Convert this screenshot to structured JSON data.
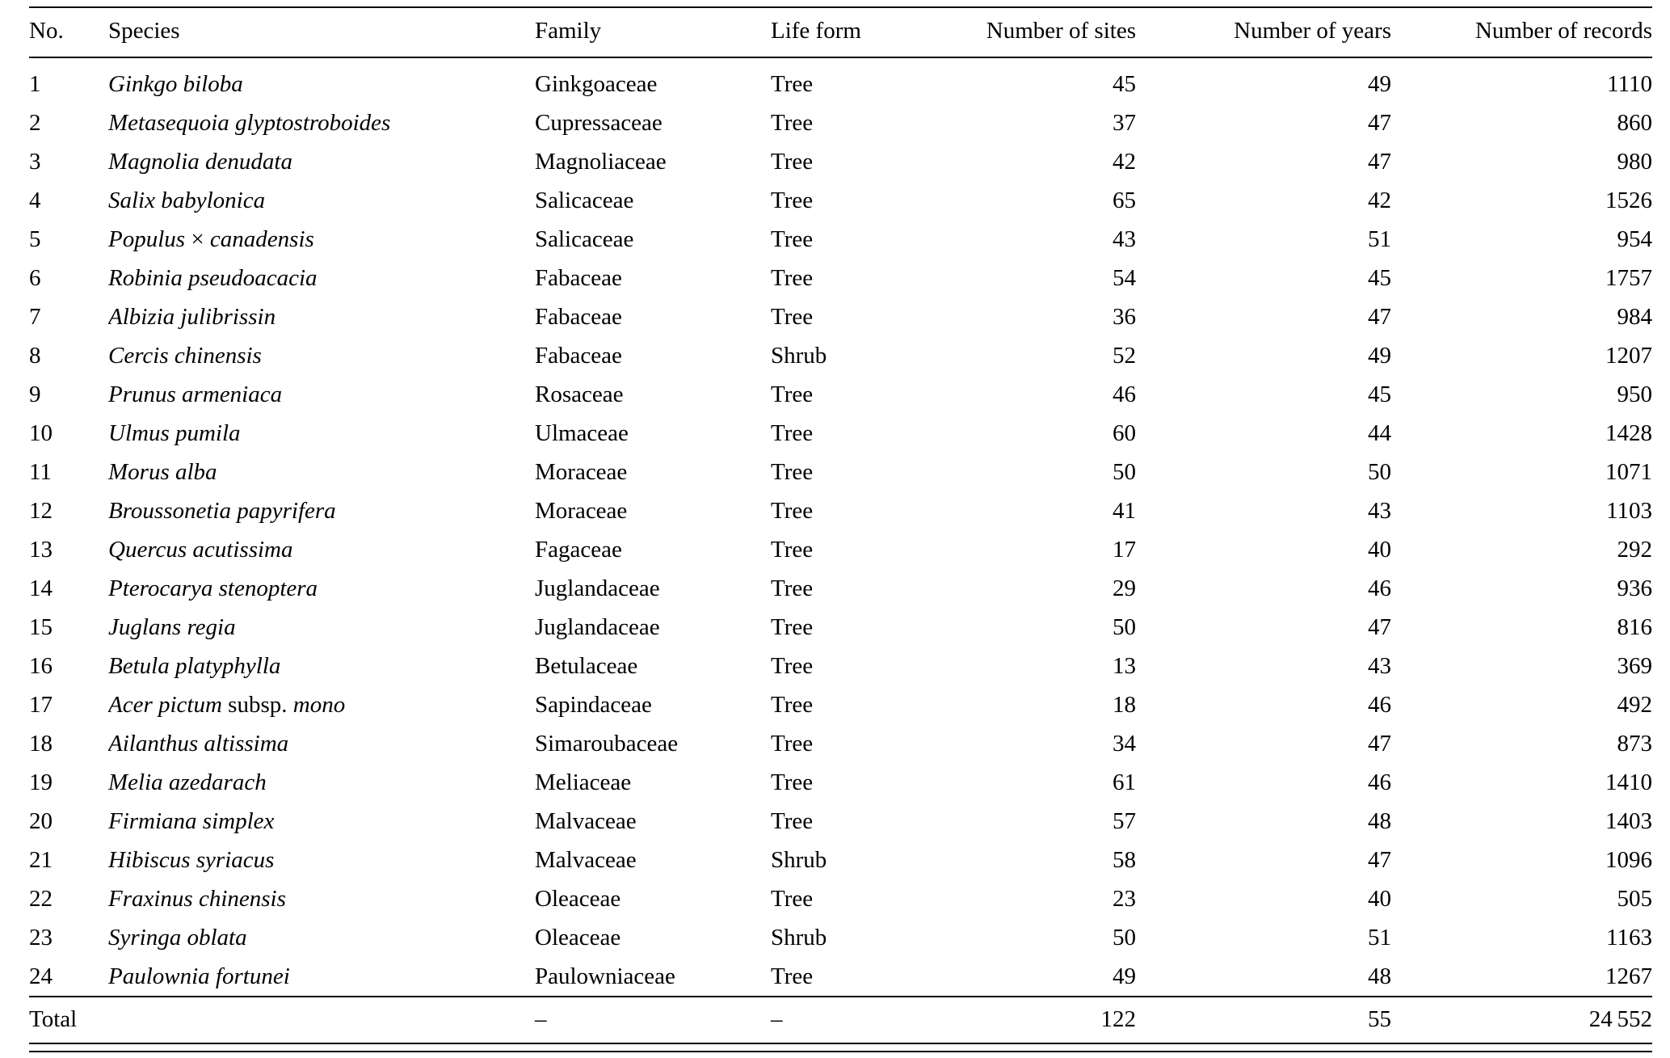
{
  "table": {
    "headers": [
      "No.",
      "Species",
      "Family",
      "Life form",
      "Number of sites",
      "Number of years",
      "Number of records"
    ],
    "rows": [
      {
        "no": "1",
        "species": [
          {
            "t": "Ginkgo biloba",
            "it": true
          }
        ],
        "family": "Ginkgoaceae",
        "life_form": "Tree",
        "sites": "45",
        "years": "49",
        "records": "1110"
      },
      {
        "no": "2",
        "species": [
          {
            "t": "Metasequoia glyptostroboides",
            "it": true
          }
        ],
        "family": "Cupressaceae",
        "life_form": "Tree",
        "sites": "37",
        "years": "47",
        "records": "860"
      },
      {
        "no": "3",
        "species": [
          {
            "t": "Magnolia denudata",
            "it": true
          }
        ],
        "family": "Magnoliaceae",
        "life_form": "Tree",
        "sites": "42",
        "years": "47",
        "records": "980"
      },
      {
        "no": "4",
        "species": [
          {
            "t": "Salix babylonica",
            "it": true
          }
        ],
        "family": "Salicaceae",
        "life_form": "Tree",
        "sites": "65",
        "years": "42",
        "records": "1526"
      },
      {
        "no": "5",
        "species": [
          {
            "t": "Populus ",
            "it": true
          },
          {
            "t": "× ",
            "it": false
          },
          {
            "t": "canadensis",
            "it": true
          }
        ],
        "family": "Salicaceae",
        "life_form": "Tree",
        "sites": "43",
        "years": "51",
        "records": "954"
      },
      {
        "no": "6",
        "species": [
          {
            "t": "Robinia pseudoacacia",
            "it": true
          }
        ],
        "family": "Fabaceae",
        "life_form": "Tree",
        "sites": "54",
        "years": "45",
        "records": "1757"
      },
      {
        "no": "7",
        "species": [
          {
            "t": "Albizia julibrissin",
            "it": true
          }
        ],
        "family": "Fabaceae",
        "life_form": "Tree",
        "sites": "36",
        "years": "47",
        "records": "984"
      },
      {
        "no": "8",
        "species": [
          {
            "t": "Cercis chinensis",
            "it": true
          }
        ],
        "family": "Fabaceae",
        "life_form": "Shrub",
        "sites": "52",
        "years": "49",
        "records": "1207"
      },
      {
        "no": "9",
        "species": [
          {
            "t": "Prunus armeniaca",
            "it": true
          }
        ],
        "family": "Rosaceae",
        "life_form": "Tree",
        "sites": "46",
        "years": "45",
        "records": "950"
      },
      {
        "no": "10",
        "species": [
          {
            "t": "Ulmus pumila",
            "it": true
          }
        ],
        "family": "Ulmaceae",
        "life_form": "Tree",
        "sites": "60",
        "years": "44",
        "records": "1428"
      },
      {
        "no": "11",
        "species": [
          {
            "t": "Morus alba",
            "it": true
          }
        ],
        "family": "Moraceae",
        "life_form": "Tree",
        "sites": "50",
        "years": "50",
        "records": "1071"
      },
      {
        "no": "12",
        "species": [
          {
            "t": "Broussonetia papyrifera",
            "it": true
          }
        ],
        "family": "Moraceae",
        "life_form": "Tree",
        "sites": "41",
        "years": "43",
        "records": "1103"
      },
      {
        "no": "13",
        "species": [
          {
            "t": "Quercus acutissima",
            "it": true
          }
        ],
        "family": "Fagaceae",
        "life_form": "Tree",
        "sites": "17",
        "years": "40",
        "records": "292"
      },
      {
        "no": "14",
        "species": [
          {
            "t": "Pterocarya stenoptera",
            "it": true
          }
        ],
        "family": "Juglandaceae",
        "life_form": "Tree",
        "sites": "29",
        "years": "46",
        "records": "936"
      },
      {
        "no": "15",
        "species": [
          {
            "t": "Juglans regia",
            "it": true
          }
        ],
        "family": "Juglandaceae",
        "life_form": "Tree",
        "sites": "50",
        "years": "47",
        "records": "816"
      },
      {
        "no": "16",
        "species": [
          {
            "t": "Betula platyphylla",
            "it": true
          }
        ],
        "family": "Betulaceae",
        "life_form": "Tree",
        "sites": "13",
        "years": "43",
        "records": "369"
      },
      {
        "no": "17",
        "species": [
          {
            "t": "Acer pictum ",
            "it": true
          },
          {
            "t": "subsp. ",
            "it": false
          },
          {
            "t": "mono",
            "it": true
          }
        ],
        "family": "Sapindaceae",
        "life_form": "Tree",
        "sites": "18",
        "years": "46",
        "records": "492"
      },
      {
        "no": "18",
        "species": [
          {
            "t": "Ailanthus altissima",
            "it": true
          }
        ],
        "family": "Simaroubaceae",
        "life_form": "Tree",
        "sites": "34",
        "years": "47",
        "records": "873"
      },
      {
        "no": "19",
        "species": [
          {
            "t": "Melia azedarach",
            "it": true
          }
        ],
        "family": "Meliaceae",
        "life_form": "Tree",
        "sites": "61",
        "years": "46",
        "records": "1410"
      },
      {
        "no": "20",
        "species": [
          {
            "t": "Firmiana simplex",
            "it": true
          }
        ],
        "family": "Malvaceae",
        "life_form": "Tree",
        "sites": "57",
        "years": "48",
        "records": "1403"
      },
      {
        "no": "21",
        "species": [
          {
            "t": "Hibiscus syriacus",
            "it": true
          }
        ],
        "family": "Malvaceae",
        "life_form": "Shrub",
        "sites": "58",
        "years": "47",
        "records": "1096"
      },
      {
        "no": "22",
        "species": [
          {
            "t": "Fraxinus chinensis",
            "it": true
          }
        ],
        "family": "Oleaceae",
        "life_form": "Tree",
        "sites": "23",
        "years": "40",
        "records": "505"
      },
      {
        "no": "23",
        "species": [
          {
            "t": "Syringa oblata",
            "it": true
          }
        ],
        "family": "Oleaceae",
        "life_form": "Shrub",
        "sites": "50",
        "years": "51",
        "records": "1163"
      },
      {
        "no": "24",
        "species": [
          {
            "t": "Paulownia fortunei",
            "it": true
          }
        ],
        "family": "Paulowniaceae",
        "life_form": "Tree",
        "sites": "49",
        "years": "48",
        "records": "1267"
      }
    ],
    "total": {
      "label": "Total",
      "family": "–",
      "life_form": "–",
      "sites": "122",
      "years": "55",
      "records": "24 552"
    }
  }
}
